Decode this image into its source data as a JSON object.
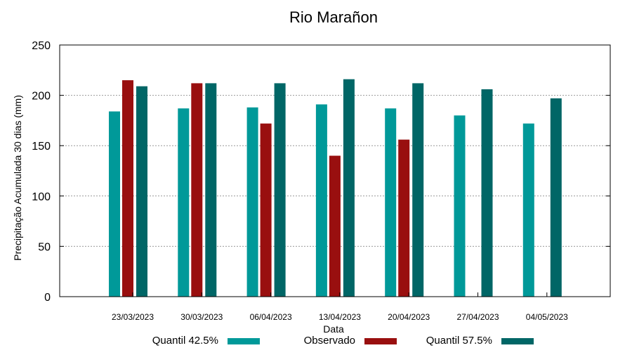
{
  "chart_data": {
    "type": "bar",
    "title": "Rio Marañon",
    "xlabel": "Data",
    "ylabel": "Precipitação Acumulada 30 dias (mm)",
    "ylim": [
      0,
      250
    ],
    "yticks": [
      0,
      50,
      100,
      150,
      200,
      250
    ],
    "grid": true,
    "legend": "bottom",
    "categories": [
      "23/03/2023",
      "30/03/2023",
      "06/04/2023",
      "13/04/2023",
      "20/04/2023",
      "27/04/2023",
      "04/05/2023"
    ],
    "series": [
      {
        "name": "Quantil 42.5%",
        "color": "#009999",
        "values": [
          184,
          187,
          188,
          191,
          187,
          180,
          172
        ]
      },
      {
        "name": "Observado",
        "color": "#990f0f",
        "values": [
          215,
          212,
          172,
          140,
          156,
          null,
          null
        ]
      },
      {
        "name": "Quantil 57.5%",
        "color": "#006666",
        "values": [
          209,
          212,
          212,
          216,
          212,
          206,
          197
        ]
      }
    ]
  }
}
